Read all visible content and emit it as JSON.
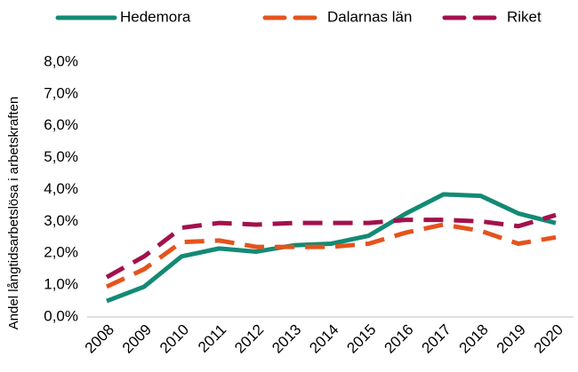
{
  "chart_data": {
    "type": "line",
    "y_label": "Andel långtidsarbetslösa i arbetskraften",
    "categories": [
      "2008",
      "2009",
      "2010",
      "2011",
      "2012",
      "2013",
      "2014",
      "2015",
      "2016",
      "2017",
      "2018",
      "2019",
      "2020"
    ],
    "series": [
      {
        "name": "Hedemora",
        "color": "#138a74",
        "dash": "solid",
        "values": [
          0.5,
          0.95,
          1.9,
          2.15,
          2.05,
          2.25,
          2.3,
          2.55,
          3.25,
          3.85,
          3.8,
          3.25,
          2.95
        ]
      },
      {
        "name": "Dalarnas län",
        "color": "#e5531d",
        "dash": "dashed",
        "values": [
          0.95,
          1.5,
          2.35,
          2.4,
          2.2,
          2.2,
          2.2,
          2.3,
          2.65,
          2.9,
          2.7,
          2.3,
          2.5
        ]
      },
      {
        "name": "Riket",
        "color": "#a3114b",
        "dash": "dashed",
        "values": [
          1.25,
          1.9,
          2.8,
          2.95,
          2.9,
          2.95,
          2.95,
          2.95,
          3.05,
          3.05,
          3.0,
          2.85,
          3.2
        ]
      }
    ],
    "ylim": [
      0,
      8
    ],
    "yticks": [
      {
        "value": 0,
        "label": "0,0%"
      },
      {
        "value": 1,
        "label": "1,0%"
      },
      {
        "value": 2,
        "label": "2,0%"
      },
      {
        "value": 3,
        "label": "3,0%"
      },
      {
        "value": 4,
        "label": "4,0%"
      },
      {
        "value": 5,
        "label": "5,0%"
      },
      {
        "value": 6,
        "label": "6,0%"
      },
      {
        "value": 7,
        "label": "7,0%"
      },
      {
        "value": 8,
        "label": "8,0%"
      }
    ],
    "legend": "top"
  }
}
